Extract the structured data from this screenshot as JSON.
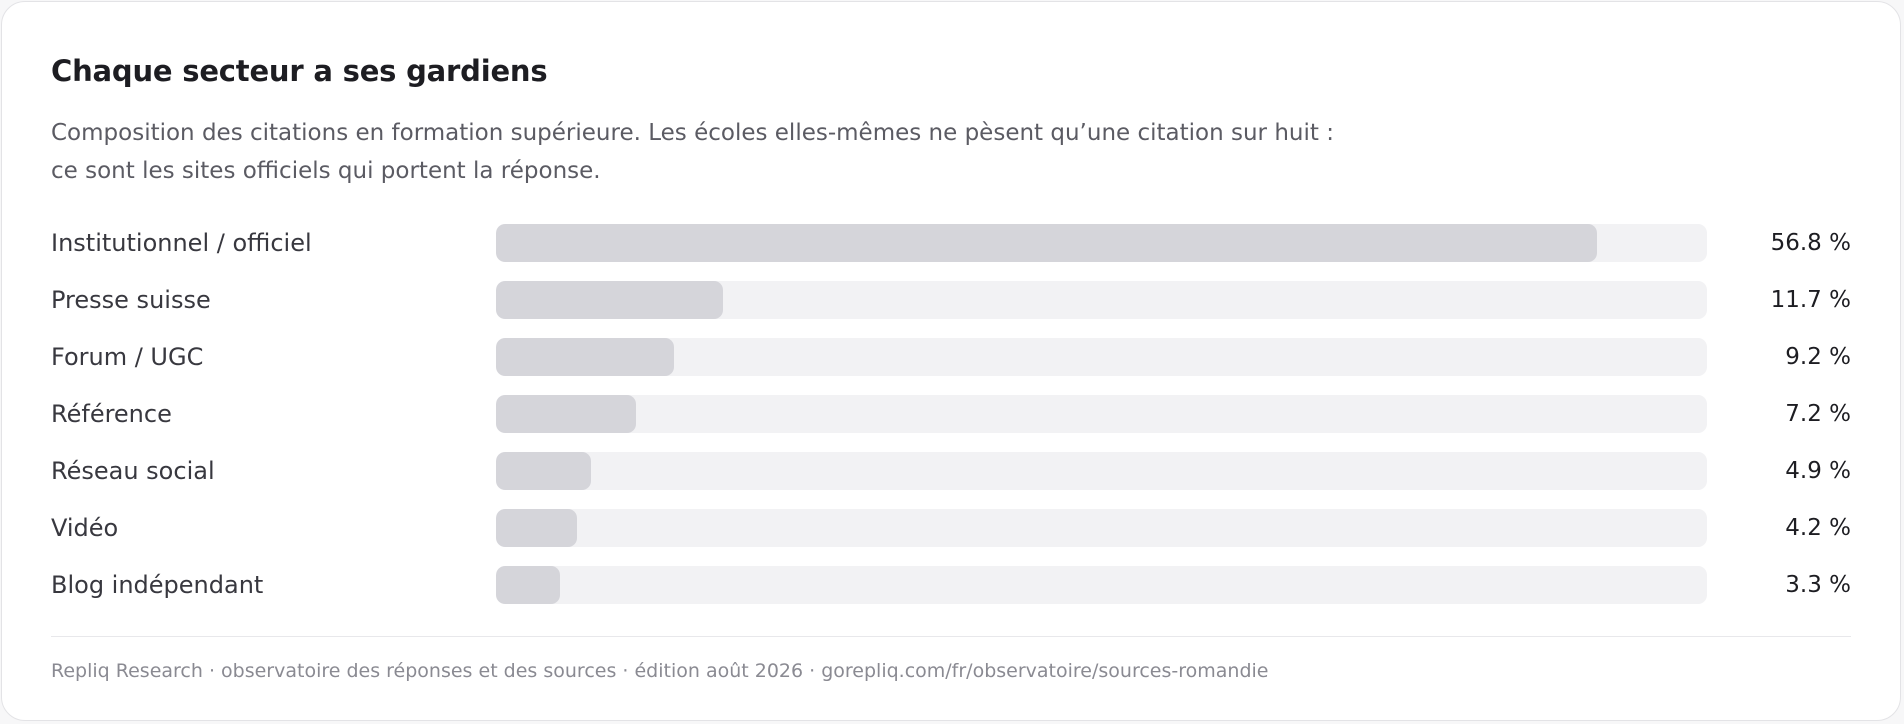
{
  "chart_data": {
    "type": "bar",
    "orientation": "horizontal",
    "title": "Chaque secteur a ses gardiens",
    "subtitle_lines": [
      "Composition des citations en formation supérieure. Les écoles elles-mêmes ne pèsent qu’une citation sur huit :",
      "ce sont les sites officiels qui portent la réponse."
    ],
    "categories": [
      "Institutionnel / officiel",
      "Presse suisse",
      "Forum / UGC",
      "Référence",
      "Réseau social",
      "Vidéo",
      "Blog indépendant"
    ],
    "values": [
      56.8,
      11.7,
      9.2,
      7.2,
      4.9,
      4.2,
      3.3
    ],
    "value_labels": [
      "56.8 %",
      "11.7 %",
      "9.2 %",
      "7.2 %",
      "4.9 %",
      "4.2 %",
      "3.3 %"
    ],
    "unit": "%",
    "xlim": [
      0,
      62.5
    ],
    "grid": false,
    "legend": "none",
    "bar_color": "#d5d5da",
    "track_color": "#f2f2f4"
  },
  "footer": "Repliq Research · observatoire des réponses et des sources · édition août 2026 · gorepliq.com/fr/observatoire/sources-romandie"
}
